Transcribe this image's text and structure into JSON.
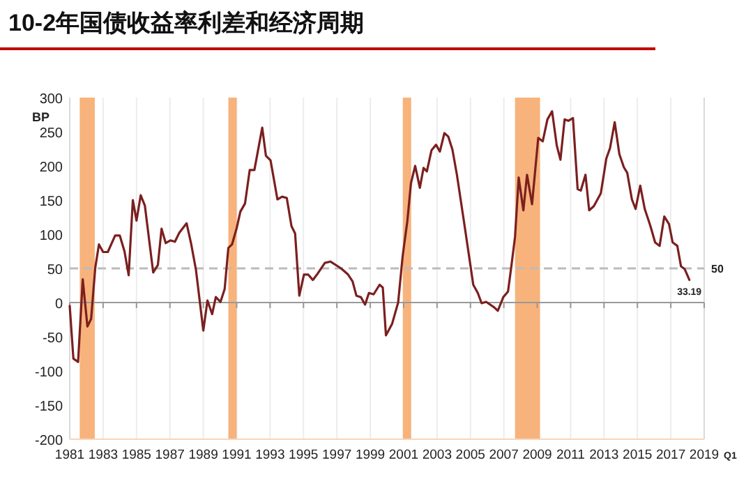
{
  "chart_data": {
    "type": "line",
    "title": "10-2年国债收益率利差和经济周期",
    "ylabel": "BP",
    "x": [
      1981.0,
      1981.22,
      1981.5,
      1981.78,
      1982.06,
      1982.28,
      1982.53,
      1982.75,
      1983.0,
      1983.28,
      1983.72,
      1984.0,
      1984.28,
      1984.53,
      1984.78,
      1985.0,
      1985.25,
      1985.5,
      1986.0,
      1986.28,
      1986.5,
      1986.75,
      1987.03,
      1987.3,
      1987.56,
      1988.0,
      1988.28,
      1988.56,
      1989.0,
      1989.25,
      1989.53,
      1989.75,
      1990.03,
      1990.28,
      1990.5,
      1990.72,
      1991.0,
      1991.22,
      1991.5,
      1991.78,
      1992.06,
      1992.53,
      1992.75,
      1993.03,
      1993.44,
      1993.72,
      1994.0,
      1994.28,
      1994.5,
      1994.75,
      1995.03,
      1995.28,
      1995.56,
      1995.81,
      1996.28,
      1996.61,
      1997.25,
      1997.67,
      1997.94,
      1998.17,
      1998.44,
      1998.69,
      1998.92,
      1999.2,
      1999.56,
      1999.75,
      1999.94,
      2000.31,
      2000.67,
      2000.94,
      2001.22,
      2001.44,
      2001.69,
      2001.97,
      2002.19,
      2002.39,
      2002.67,
      2002.94,
      2003.17,
      2003.44,
      2003.67,
      2003.92,
      2004.19,
      2004.67,
      2005.17,
      2005.44,
      2005.67,
      2005.94,
      2006.42,
      2006.64,
      2006.97,
      2007.25,
      2007.44,
      2007.67,
      2007.89,
      2008.17,
      2008.39,
      2008.69,
      2009.06,
      2009.33,
      2009.61,
      2009.89,
      2010.17,
      2010.39,
      2010.64,
      2010.86,
      2011.14,
      2011.42,
      2011.61,
      2011.89,
      2012.11,
      2012.39,
      2012.81,
      2013.14,
      2013.36,
      2013.64,
      2013.92,
      2014.19,
      2014.39,
      2014.67,
      2014.89,
      2015.17,
      2015.44,
      2015.78,
      2016.06,
      2016.33,
      2016.61,
      2016.89,
      2017.11,
      2017.39,
      2017.61,
      2017.83,
      2018.11
    ],
    "series": [
      {
        "color": "#7b1f1f",
        "values": [
          -5,
          -82,
          -87,
          34,
          -35,
          -24,
          51,
          85,
          74,
          74,
          98,
          98,
          75,
          40,
          150,
          120,
          157,
          142,
          44,
          55,
          108,
          87,
          91,
          89,
          102,
          116,
          85,
          48,
          -41,
          3,
          -17,
          8,
          1,
          20,
          80,
          85,
          109,
          133,
          145,
          194,
          194,
          256,
          215,
          208,
          151,
          155,
          153,
          112,
          101,
          10,
          41,
          41,
          33,
          41,
          58,
          60,
          50,
          41,
          31,
          10,
          8,
          -3,
          14,
          12,
          26,
          22,
          -48,
          -31,
          0,
          68,
          119,
          175,
          200,
          168,
          197,
          192,
          223,
          231,
          221,
          248,
          243,
          224,
          187,
          109,
          26,
          14,
          -1,
          1,
          -7,
          -12,
          8,
          16,
          51,
          96,
          183,
          135,
          187,
          144,
          241,
          236,
          268,
          280,
          230,
          209,
          268,
          266,
          270,
          166,
          164,
          187,
          135,
          141,
          160,
          211,
          226,
          264,
          217,
          198,
          190,
          151,
          137,
          171,
          137,
          112,
          88,
          83,
          126,
          115,
          88,
          83,
          53,
          49,
          33.19
        ]
      }
    ],
    "xlim": [
      1981,
      2019
    ],
    "xticks": [
      1981,
      1983,
      1985,
      1987,
      1989,
      1991,
      1993,
      1995,
      1997,
      1999,
      2001,
      2003,
      2005,
      2007,
      2009,
      2011,
      2013,
      2015,
      2017,
      2019
    ],
    "ylim": [
      -200,
      300
    ],
    "yticks": [
      -200,
      -150,
      -100,
      -50,
      0,
      50,
      100,
      150,
      200,
      250,
      300
    ],
    "grid": "x",
    "bands": [
      {
        "axis": "x",
        "from": 1981.6,
        "to": 1982.5,
        "color": "#f7b37b"
      },
      {
        "axis": "x",
        "from": 1990.5,
        "to": 1991.0,
        "color": "#f7b37b"
      },
      {
        "axis": "x",
        "from": 2000.95,
        "to": 2001.45,
        "color": "#f7b37b"
      },
      {
        "axis": "x",
        "from": 2007.67,
        "to": 2009.17,
        "color": "#f7b37b"
      }
    ],
    "ref_lines": [
      {
        "axis": "y",
        "value": 50,
        "label": "50",
        "color": "#bbbbbb",
        "line_style": "dashed"
      }
    ],
    "annotations": [
      {
        "text": "33.19",
        "x": 2018.11,
        "y": 33.19
      },
      "Q1"
    ]
  }
}
